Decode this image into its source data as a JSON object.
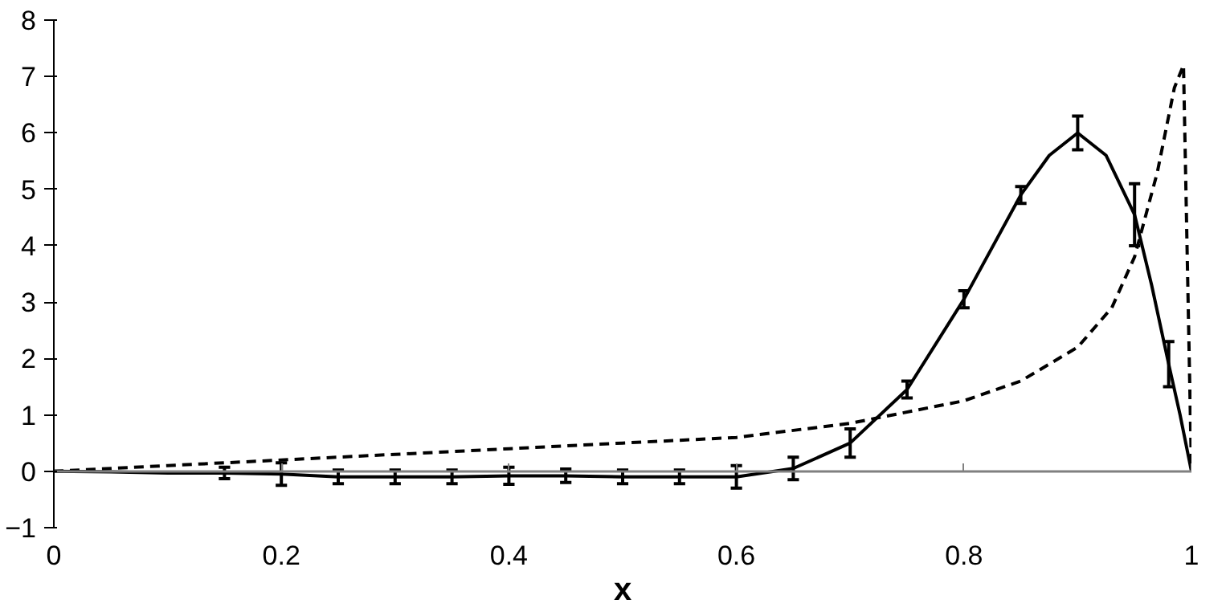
{
  "chart_data": {
    "type": "line",
    "xlabel": "x",
    "xlim": [
      0,
      1
    ],
    "ylim": [
      -1,
      8
    ],
    "xticks": [
      0,
      0.2,
      0.4,
      0.6,
      0.8,
      1
    ],
    "yticks": [
      -1,
      0,
      1,
      2,
      3,
      4,
      5,
      6,
      7,
      8
    ],
    "grid": false,
    "series": [
      {
        "color": "#000000",
        "line_style": "solid",
        "x": [
          0,
          0.05,
          0.1,
          0.15,
          0.2,
          0.25,
          0.3,
          0.35,
          0.4,
          0.45,
          0.5,
          0.55,
          0.6,
          0.65,
          0.7,
          0.75,
          0.8,
          0.85,
          0.875,
          0.9,
          0.925,
          0.95,
          0.965,
          0.98,
          0.99,
          1
        ],
        "values": [
          0,
          -0.01,
          -0.03,
          -0.03,
          -0.05,
          -0.1,
          -0.1,
          -0.1,
          -0.08,
          -0.08,
          -0.1,
          -0.1,
          -0.1,
          0.05,
          0.5,
          1.45,
          3.05,
          4.9,
          5.6,
          6.0,
          5.6,
          4.55,
          3.3,
          1.9,
          1.0,
          0
        ],
        "errors": [
          null,
          null,
          null,
          0.1,
          0.2,
          0.12,
          0.12,
          0.12,
          0.15,
          0.12,
          0.12,
          0.12,
          0.2,
          0.2,
          0.25,
          0.15,
          0.15,
          0.15,
          null,
          0.3,
          null,
          0.55,
          null,
          0.4,
          null,
          null
        ]
      },
      {
        "color": "#000000",
        "line_style": "dashed",
        "x": [
          0,
          0.1,
          0.2,
          0.3,
          0.4,
          0.5,
          0.6,
          0.7,
          0.8,
          0.85,
          0.9,
          0.93,
          0.95,
          0.97,
          0.985,
          0.993,
          1
        ],
        "values": [
          0,
          0.1,
          0.2,
          0.3,
          0.4,
          0.5,
          0.6,
          0.85,
          1.25,
          1.6,
          2.2,
          2.9,
          3.8,
          5.3,
          6.8,
          7.2,
          0
        ]
      }
    ]
  }
}
